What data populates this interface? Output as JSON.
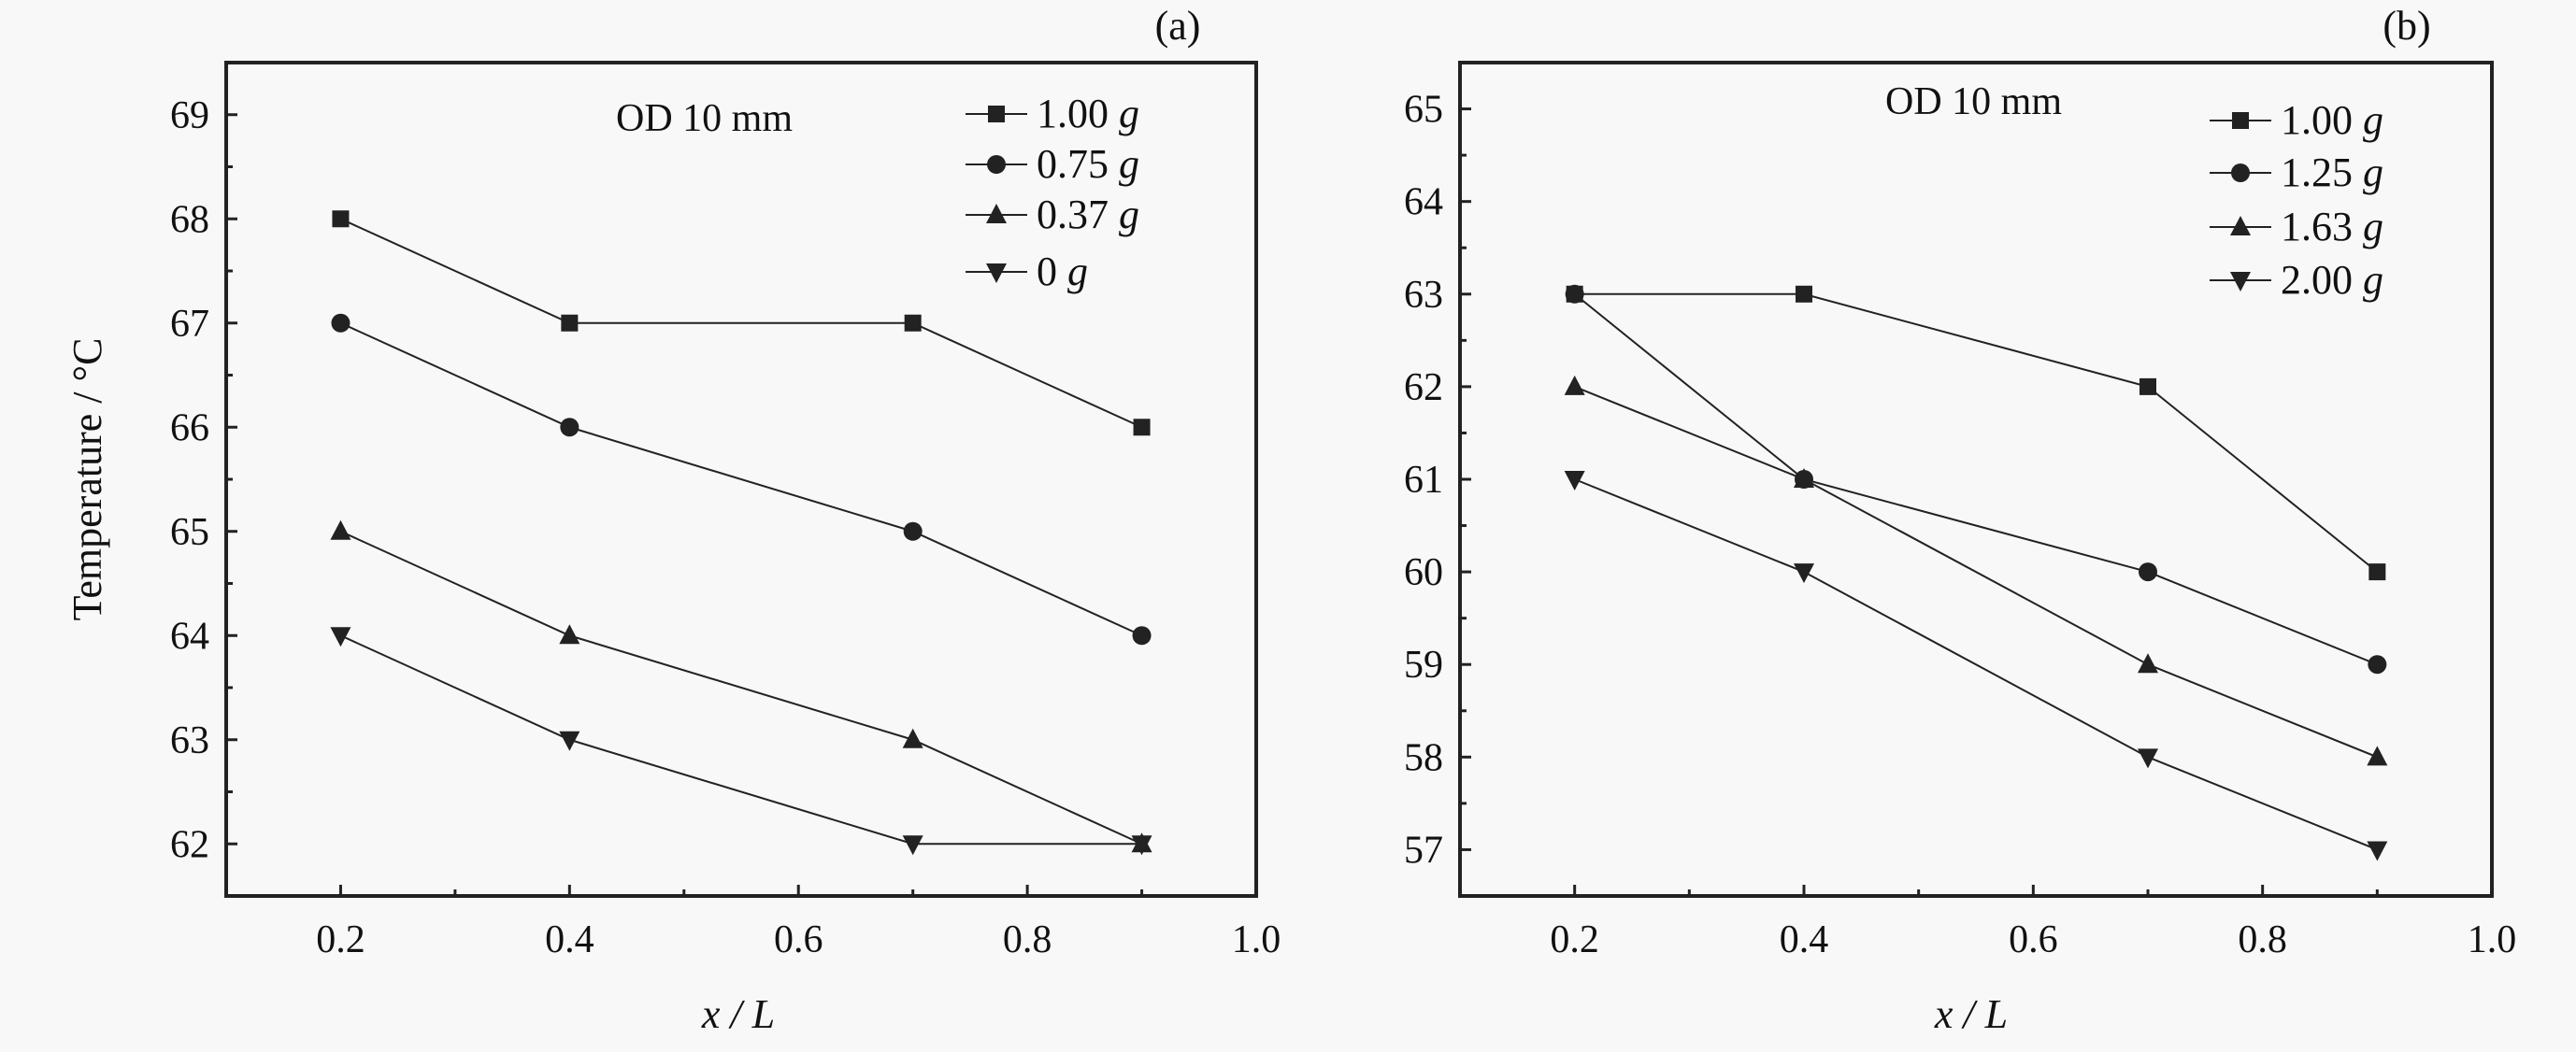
{
  "chart_data": [
    {
      "type": "line",
      "panel_label": "(a)",
      "annotation": "OD 10 mm",
      "xlabel": "x / L",
      "ylabel": "Temperature / °C",
      "xlim": [
        0.1,
        1.0
      ],
      "ylim": [
        61.5,
        69.5
      ],
      "xticks": [
        "0.2",
        "0.4",
        "0.6",
        "0.8",
        "1.0"
      ],
      "yticks": [
        "62",
        "63",
        "64",
        "65",
        "66",
        "67",
        "68",
        "69"
      ],
      "grid": false,
      "legend_position": "top-right",
      "x": [
        0.2,
        0.4,
        0.7,
        0.9
      ],
      "series": [
        {
          "name": "1.00 g",
          "marker": "square",
          "values": [
            68,
            67,
            67,
            66
          ]
        },
        {
          "name": "0.75 g",
          "marker": "circle",
          "values": [
            67,
            66,
            65,
            64
          ]
        },
        {
          "name": "0.37 g",
          "marker": "triangle-up",
          "values": [
            65,
            64,
            63,
            62
          ]
        },
        {
          "name": "0 g",
          "marker": "triangle-down",
          "values": [
            64,
            63,
            62,
            62
          ]
        }
      ]
    },
    {
      "type": "line",
      "panel_label": "(b)",
      "annotation": "OD 10 mm",
      "xlabel": "x / L",
      "ylabel": "",
      "xlim": [
        0.1,
        1.0
      ],
      "ylim": [
        56.5,
        65.5
      ],
      "xticks": [
        "0.2",
        "0.4",
        "0.6",
        "0.8",
        "1.0"
      ],
      "yticks": [
        "57",
        "58",
        "59",
        "60",
        "61",
        "62",
        "63",
        "64",
        "65"
      ],
      "grid": false,
      "legend_position": "top-right",
      "x": [
        0.2,
        0.4,
        0.7,
        0.9
      ],
      "series": [
        {
          "name": "1.00 g",
          "marker": "square",
          "values": [
            63,
            63,
            62,
            60
          ]
        },
        {
          "name": "1.25 g",
          "marker": "circle",
          "values": [
            63,
            61,
            60,
            59
          ]
        },
        {
          "name": "1.63 g",
          "marker": "triangle-up",
          "values": [
            62,
            61,
            59,
            58
          ]
        },
        {
          "name": "2.00 g",
          "marker": "triangle-down",
          "values": [
            61,
            60,
            58,
            57
          ]
        }
      ]
    }
  ],
  "colors": {
    "line": "#222222",
    "background": "#f8f8f8"
  }
}
